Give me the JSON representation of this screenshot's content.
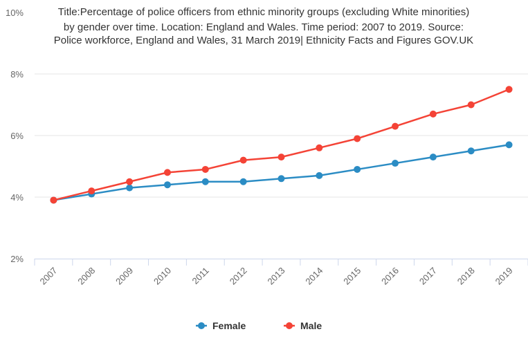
{
  "chart_data": {
    "type": "line",
    "title_lines": [
      "Title:Percentage of police officers from ethnic minority groups (excluding White minorities)",
      "by gender over time. Location: England and Wales. Time period: 2007 to 2019. Source:",
      "Police workforce, England and Wales, 31 March 2019| Ethnicity Facts and Figures GOV.UK"
    ],
    "categories": [
      "2007",
      "2008",
      "2009",
      "2010",
      "2011",
      "2012",
      "2013",
      "2014",
      "2015",
      "2016",
      "2017",
      "2018",
      "2019"
    ],
    "y_ticks": [
      "2%",
      "4%",
      "6%",
      "8%",
      "10%"
    ],
    "ylim": [
      2,
      10
    ],
    "series": [
      {
        "name": "Female",
        "color": "#2b8cc4",
        "values": [
          3.9,
          4.1,
          4.3,
          4.4,
          4.5,
          4.5,
          4.6,
          4.7,
          4.9,
          5.1,
          5.3,
          5.5,
          5.7
        ]
      },
      {
        "name": "Male",
        "color": "#f44336",
        "values": [
          3.9,
          4.2,
          4.5,
          4.8,
          4.9,
          5.2,
          5.3,
          5.6,
          5.9,
          6.3,
          6.7,
          7.0,
          7.5
        ]
      }
    ],
    "grid": true,
    "legend_position": "bottom-center"
  }
}
